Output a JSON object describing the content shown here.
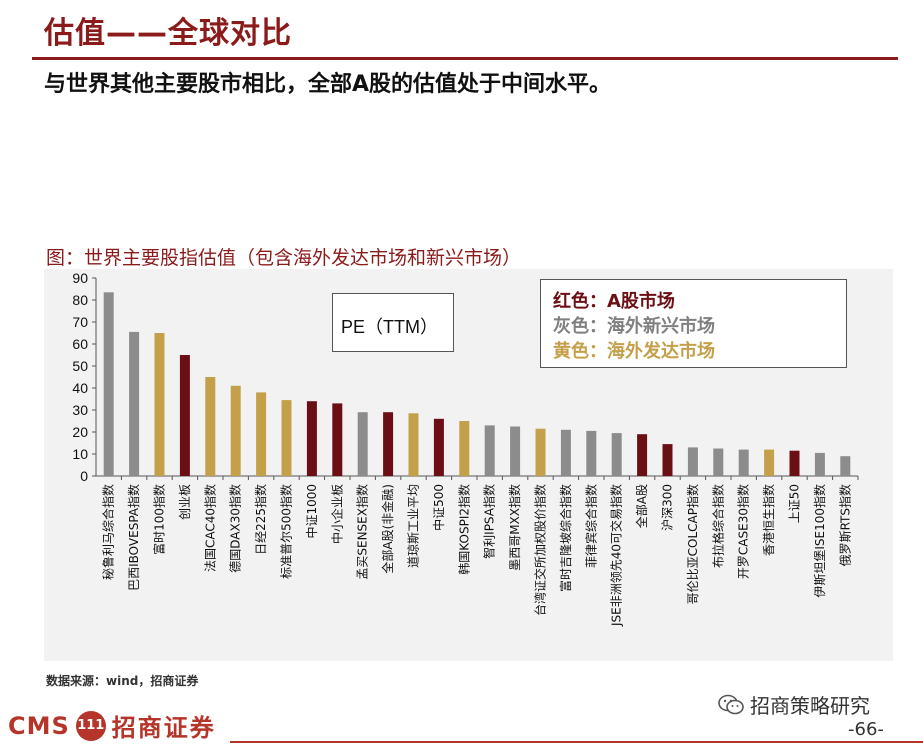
{
  "header": {
    "title": "估值——全球对比",
    "subtitle": "与世界其他主要股市相比，全部A股的估值处于中间水平。"
  },
  "figure": {
    "title": "图：世界主要股指估值（包含海外发达市场和新兴市场）",
    "pe_label": "PE（TTM）",
    "legend": [
      {
        "label": "红色：A股市场",
        "color": "#6b0f14"
      },
      {
        "label": "灰色：海外新兴市场",
        "color": "#808080"
      },
      {
        "label": "黄色：海外发达市场",
        "color": "#c5a04a"
      }
    ],
    "source": "数据来源：wind，招商证券"
  },
  "colors": {
    "red": "#6b0f14",
    "gray": "#8c8c8c",
    "gold": "#c5a04a",
    "brand": "#b5352a"
  },
  "chart_data": {
    "type": "bar",
    "title": "图：世界主要股指估值（包含海外发达市场和新兴市场）",
    "ylabel": "PE（TTM）",
    "ylim": [
      0,
      90
    ],
    "yticks": [
      0,
      10,
      20,
      30,
      40,
      50,
      60,
      70,
      80,
      90
    ],
    "grid": false,
    "legend_position": "top-right",
    "categories": [
      "秘鲁利马综合指数",
      "巴西IBOVESPA指数",
      "富时100指数",
      "创业板",
      "法国CAC40指数",
      "德国DAX30指数",
      "日经225指数",
      "标准普尔500指数",
      "中证1000",
      "中小企业板",
      "孟买SENSEX指数",
      "全部A股(非金融)",
      "道琼斯工业平均",
      "中证500",
      "韩国KOSPI2指数",
      "智利IPSA指数",
      "墨西哥MXX指数",
      "台湾证交所加权股价指数",
      "富时吉隆坡综合指数",
      "菲律宾综合指数",
      "JSE非洲领先40可交易指数",
      "全部A股",
      "沪深300",
      "哥伦比亚COLCAP指数",
      "布拉格综合指数",
      "开罗CASE30指数",
      "香港恒生指数",
      "上证50",
      "伊斯坦堡ISE100指数",
      "俄罗斯RTS指数"
    ],
    "values": [
      83.5,
      65.5,
      65,
      55,
      45,
      41,
      38,
      34.5,
      34,
      33,
      29,
      29,
      28.5,
      26,
      25,
      23,
      22.5,
      21.5,
      21,
      20.5,
      19.5,
      19,
      14.5,
      13,
      12.5,
      12,
      12,
      11.5,
      10.5,
      9
    ],
    "groups": [
      "gray",
      "gray",
      "gold",
      "red",
      "gold",
      "gold",
      "gold",
      "gold",
      "red",
      "red",
      "gray",
      "red",
      "gold",
      "red",
      "gold",
      "gray",
      "gray",
      "gold",
      "gray",
      "gray",
      "gray",
      "red",
      "red",
      "gray",
      "gray",
      "gray",
      "gold",
      "red",
      "gray",
      "gray"
    ]
  },
  "footer": {
    "wechat_label": "招商策略研究",
    "brand_cms": "CMS",
    "brand_logo_text": "111",
    "brand_name": "招商证券",
    "page_number": "-66-"
  }
}
